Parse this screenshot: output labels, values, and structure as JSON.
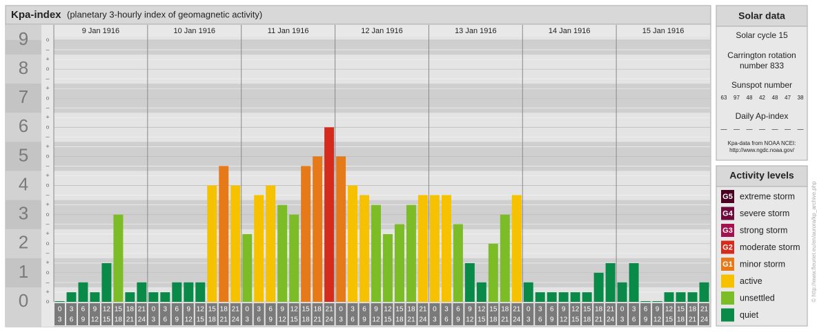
{
  "chart_data": {
    "type": "bar",
    "title": "Kpa-index",
    "subtitle": "(planetary 3-hourly index of geomagnetic activity)",
    "ylim": [
      0,
      9
    ],
    "yticks": [
      0,
      1,
      2,
      3,
      4,
      5,
      6,
      7,
      8,
      9
    ],
    "sub_labels": [
      "o",
      "+",
      "–"
    ],
    "hours": [
      0,
      3,
      6,
      9,
      12,
      15,
      18,
      21,
      24
    ],
    "days": [
      {
        "date": "9 Jan 1916",
        "values": [
          0,
          0.33,
          0.67,
          0.33,
          1.33,
          3,
          0.33,
          0.67
        ],
        "colors": [
          "#0a8a48",
          "#0a8a48",
          "#0a8a48",
          "#0a8a48",
          "#0a8a48",
          "#7cbc26",
          "#0a8a48",
          "#0a8a48"
        ]
      },
      {
        "date": "10 Jan 1916",
        "values": [
          0.33,
          0.33,
          0.67,
          0.67,
          0.67,
          4,
          4.67,
          4
        ],
        "colors": [
          "#0a8a48",
          "#0a8a48",
          "#0a8a48",
          "#0a8a48",
          "#0a8a48",
          "#f6c200",
          "#e67a18",
          "#f6c200"
        ]
      },
      {
        "date": "11 Jan 1916",
        "values": [
          2.33,
          3.67,
          4,
          3.33,
          3,
          4.67,
          5,
          6
        ],
        "colors": [
          "#7cbc26",
          "#f6c200",
          "#f6c200",
          "#7cbc26",
          "#7cbc26",
          "#e67a18",
          "#e67a18",
          "#d42b1c"
        ]
      },
      {
        "date": "12 Jan 1916",
        "values": [
          5,
          4,
          3.67,
          3.33,
          2.33,
          2.67,
          3.33,
          3.67
        ],
        "colors": [
          "#e67a18",
          "#f6c200",
          "#f6c200",
          "#7cbc26",
          "#7cbc26",
          "#7cbc26",
          "#7cbc26",
          "#f6c200"
        ]
      },
      {
        "date": "13 Jan 1916",
        "values": [
          3.67,
          3.67,
          2.67,
          1.33,
          0.67,
          2,
          3,
          3.67
        ],
        "colors": [
          "#f6c200",
          "#f6c200",
          "#7cbc26",
          "#0a8a48",
          "#0a8a48",
          "#7cbc26",
          "#7cbc26",
          "#f6c200"
        ]
      },
      {
        "date": "14 Jan 1916",
        "values": [
          0.67,
          0.33,
          0.33,
          0.33,
          0.33,
          0.33,
          1,
          1.33
        ],
        "colors": [
          "#0a8a48",
          "#0a8a48",
          "#0a8a48",
          "#0a8a48",
          "#0a8a48",
          "#0a8a48",
          "#0a8a48",
          "#0a8a48"
        ]
      },
      {
        "date": "15 Jan 1916",
        "values": [
          0.67,
          1.33,
          0,
          0,
          0.33,
          0.33,
          0.33,
          0.67
        ],
        "colors": [
          "#0a8a48",
          "#0a8a48",
          "#0a8a48",
          "#0a8a48",
          "#0a8a48",
          "#0a8a48",
          "#0a8a48",
          "#0a8a48"
        ]
      }
    ]
  },
  "solar_data": {
    "title": "Solar data",
    "cycle": "Solar cycle 15",
    "carrington": [
      "Carrington rotation",
      "number 833"
    ],
    "sunspot_title": "Sunspot number",
    "sunspot_numbers": [
      63,
      97,
      48,
      42,
      48,
      47,
      38
    ],
    "ap_title": "Daily Ap-index",
    "ap_values": [
      "—",
      "—",
      "—",
      "—",
      "—",
      "—",
      "—"
    ],
    "source": [
      "Kpa-data from NOAA NCEI:",
      "http://www.ngdc.noaa.gov/"
    ]
  },
  "activity_levels": {
    "title": "Activity levels",
    "levels": [
      {
        "badge": "G5",
        "label": "extreme storm",
        "color": "#4a0020"
      },
      {
        "badge": "G4",
        "label": "severe storm",
        "color": "#6e0a3c"
      },
      {
        "badge": "G3",
        "label": "strong storm",
        "color": "#a3124f"
      },
      {
        "badge": "G2",
        "label": "moderate storm",
        "color": "#d42b1c"
      },
      {
        "badge": "G1",
        "label": "minor storm",
        "color": "#e67a18"
      },
      {
        "badge": null,
        "label": "active",
        "color": "#f6c200"
      },
      {
        "badge": null,
        "label": "unsettled",
        "color": "#7cbc26"
      },
      {
        "badge": null,
        "label": "quiet",
        "color": "#0a8a48"
      }
    ]
  },
  "watermark": "© http://www.fleuriet.eu/en/aurora/kp_archive.php"
}
